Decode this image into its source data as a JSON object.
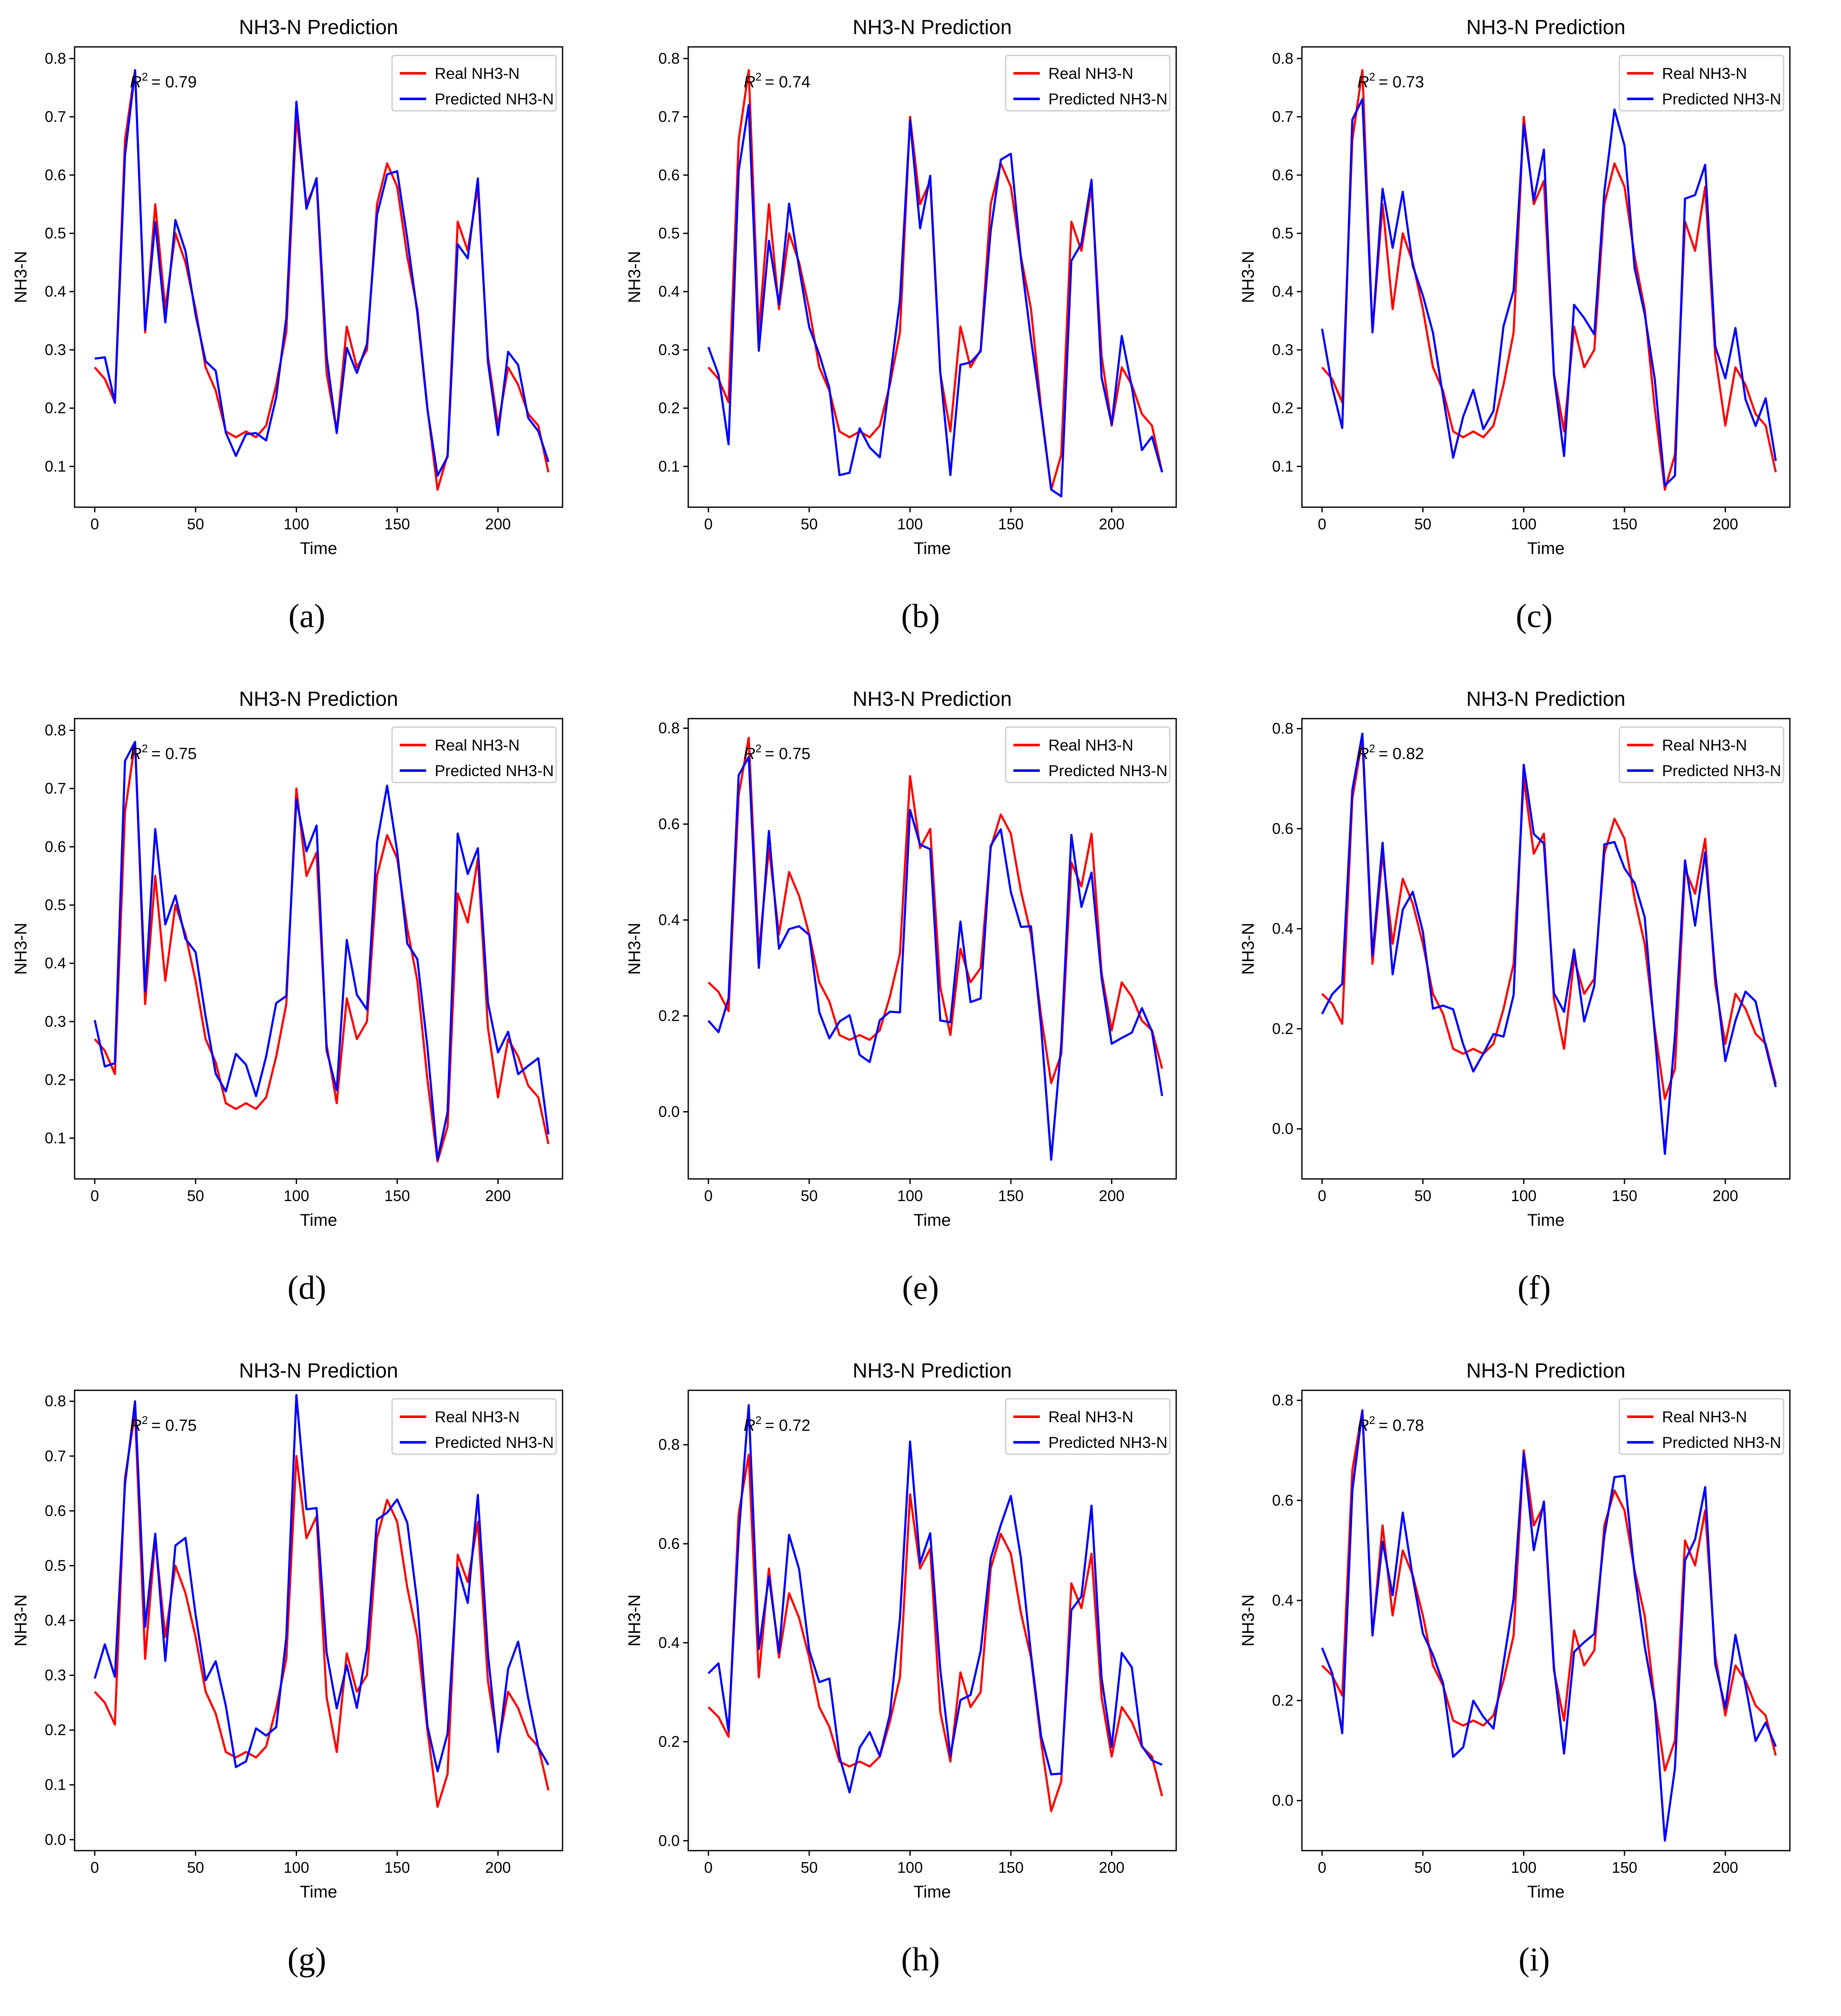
{
  "figure": {
    "panels": [
      {
        "label": "(a)",
        "r2_text": "= 0.79",
        "variant": 0
      },
      {
        "label": "(b)",
        "r2_text": "= 0.74",
        "variant": 1
      },
      {
        "label": "(c)",
        "r2_text": "= 0.73",
        "variant": 2
      },
      {
        "label": "(d)",
        "r2_text": "= 0.75",
        "variant": 3
      },
      {
        "label": "(e)",
        "r2_text": "= 0.75",
        "variant": 4
      },
      {
        "label": "(f)",
        "r2_text": "= 0.82",
        "variant": 5
      },
      {
        "label": "(g)",
        "r2_text": "= 0.75",
        "variant": 6
      },
      {
        "label": "(h)",
        "r2_text": "= 0.72",
        "variant": 7
      },
      {
        "label": "(i)",
        "r2_text": "= 0.78",
        "variant": 8
      }
    ]
  },
  "chart_data": [
    {
      "type": "line",
      "title": "NH3-N Prediction",
      "xlabel": "Time",
      "ylabel": "NH3-N",
      "xlim": [
        -10,
        232
      ],
      "ylim": [
        0.03,
        0.82
      ],
      "yticks": [
        0.1,
        0.2,
        0.3,
        0.4,
        0.5,
        0.6,
        0.7,
        0.8
      ],
      "xticks": [
        0,
        50,
        100,
        150,
        200
      ],
      "legend": [
        "Real  NH3-N",
        "Predicted  NH3-N"
      ],
      "legend_position": "top-right",
      "r2_label": "R",
      "r2_value": 0.79,
      "grid": false
    },
    {
      "type": "line",
      "title": "NH3-N Prediction",
      "xlabel": "Time",
      "ylabel": "NH3-N",
      "xlim": [
        -10,
        232
      ],
      "ylim": [
        0.03,
        0.82
      ],
      "yticks": [
        0.1,
        0.2,
        0.3,
        0.4,
        0.5,
        0.6,
        0.7,
        0.8
      ],
      "xticks": [
        0,
        50,
        100,
        150,
        200
      ],
      "legend": [
        "Real  NH3-N",
        "Predicted  NH3-N"
      ],
      "legend_position": "top-right",
      "r2_label": "R",
      "r2_value": 0.74,
      "grid": false
    },
    {
      "type": "line",
      "title": "NH3-N Prediction",
      "xlabel": "Time",
      "ylabel": "NH3-N",
      "xlim": [
        -10,
        232
      ],
      "ylim": [
        0.03,
        0.82
      ],
      "yticks": [
        0.1,
        0.2,
        0.3,
        0.4,
        0.5,
        0.6,
        0.7,
        0.8
      ],
      "xticks": [
        0,
        50,
        100,
        150,
        200
      ],
      "legend": [
        "Real  NH3-N",
        "Predicted  NH3-N"
      ],
      "legend_position": "top-right",
      "r2_label": "R",
      "r2_value": 0.73,
      "grid": false
    },
    {
      "type": "line",
      "title": "NH3-N Prediction",
      "xlabel": "Time",
      "ylabel": "NH3-N",
      "xlim": [
        -10,
        232
      ],
      "ylim": [
        0.03,
        0.82
      ],
      "yticks": [
        0.1,
        0.2,
        0.3,
        0.4,
        0.5,
        0.6,
        0.7,
        0.8
      ],
      "xticks": [
        0,
        50,
        100,
        150,
        200
      ],
      "legend": [
        "Real  NH3-N",
        "Predicted  NH3-N"
      ],
      "legend_position": "top-right",
      "r2_label": "R",
      "r2_value": 0.75,
      "grid": false
    },
    {
      "type": "line",
      "title": "NH3-N Prediction",
      "xlabel": "Time",
      "ylabel": "NH3-N",
      "xlim": [
        -10,
        232
      ],
      "ylim": [
        -0.14,
        0.82
      ],
      "yticks": [
        0.0,
        0.2,
        0.4,
        0.6,
        0.8
      ],
      "ytick_labels": [
        "0.0",
        "0.2",
        "0.4",
        "0.6",
        "0.8"
      ],
      "xticks": [
        0,
        50,
        100,
        150,
        200
      ],
      "legend": [
        "Real  NH3-N",
        "Predicted  NH3-N"
      ],
      "legend_position": "top-right",
      "r2_label": "R",
      "r2_value": 0.75,
      "grid": false
    },
    {
      "type": "line",
      "title": "NH3-N Prediction",
      "xlabel": "Time",
      "ylabel": "NH3-N",
      "xlim": [
        -10,
        232
      ],
      "ylim": [
        -0.1,
        0.82
      ],
      "yticks": [
        0.0,
        0.2,
        0.4,
        0.6,
        0.8
      ],
      "ytick_labels": [
        "0.0",
        "0.2",
        "0.4",
        "0.6",
        "0.8"
      ],
      "xticks": [
        0,
        50,
        100,
        150,
        200
      ],
      "legend": [
        "Real  NH3-N",
        "Predicted  NH3-N"
      ],
      "legend_position": "top-right",
      "r2_label": "R",
      "r2_value": 0.82,
      "grid": false
    },
    {
      "type": "line",
      "title": "NH3-N Prediction",
      "xlabel": "Time",
      "ylabel": "NH3-N",
      "xlim": [
        -10,
        232
      ],
      "ylim": [
        -0.02,
        0.82
      ],
      "yticks": [
        0.0,
        0.1,
        0.2,
        0.3,
        0.4,
        0.5,
        0.6,
        0.7,
        0.8
      ],
      "ytick_labels": [
        "0.0",
        "0.1",
        "0.2",
        "0.3",
        "0.4",
        "0.5",
        "0.6",
        "0.7",
        "0.8"
      ],
      "xticks": [
        0,
        50,
        100,
        150,
        200
      ],
      "legend": [
        "Real  NH3-N",
        "Predicted  NH3-N"
      ],
      "legend_position": "top-right",
      "r2_label": "R",
      "r2_value": 0.75,
      "grid": false
    },
    {
      "type": "line",
      "title": "NH3-N Prediction",
      "xlabel": "Time",
      "ylabel": "NH3-N",
      "xlim": [
        -10,
        232
      ],
      "ylim": [
        -0.02,
        0.91
      ],
      "yticks": [
        0.0,
        0.2,
        0.4,
        0.6,
        0.8
      ],
      "ytick_labels": [
        "0.0",
        "0.2",
        "0.4",
        "0.6",
        "0.8"
      ],
      "xticks": [
        0,
        50,
        100,
        150,
        200
      ],
      "legend": [
        "Real  NH3-N",
        "Predicted  NH3-N"
      ],
      "legend_position": "top-right",
      "r2_label": "R",
      "r2_value": 0.72,
      "grid": false
    },
    {
      "type": "line",
      "title": "NH3-N Prediction",
      "xlabel": "Time",
      "ylabel": "NH3-N",
      "xlim": [
        -10,
        232
      ],
      "ylim": [
        -0.1,
        0.82
      ],
      "yticks": [
        0.0,
        0.2,
        0.4,
        0.6,
        0.8
      ],
      "ytick_labels": [
        "0.0",
        "0.2",
        "0.4",
        "0.6",
        "0.8"
      ],
      "xticks": [
        0,
        50,
        100,
        150,
        200
      ],
      "legend": [
        "Real  NH3-N",
        "Predicted  NH3-N"
      ],
      "legend_position": "top-right",
      "r2_label": "R",
      "r2_value": 0.78,
      "grid": false
    }
  ],
  "shared_series": {
    "x_step": 5,
    "real": [
      0.27,
      0.25,
      0.21,
      0.66,
      0.78,
      0.33,
      0.55,
      0.37,
      0.5,
      0.45,
      0.37,
      0.27,
      0.23,
      0.16,
      0.15,
      0.16,
      0.15,
      0.17,
      0.24,
      0.33,
      0.7,
      0.55,
      0.59,
      0.26,
      0.16,
      0.34,
      0.27,
      0.3,
      0.55,
      0.62,
      0.58,
      0.46,
      0.37,
      0.2,
      0.06,
      0.12,
      0.52,
      0.47,
      0.58,
      0.29,
      0.17,
      0.27,
      0.24,
      0.19,
      0.17,
      0.09
    ],
    "colors": {
      "real": "#ff0000",
      "predicted": "#0000ff"
    }
  }
}
